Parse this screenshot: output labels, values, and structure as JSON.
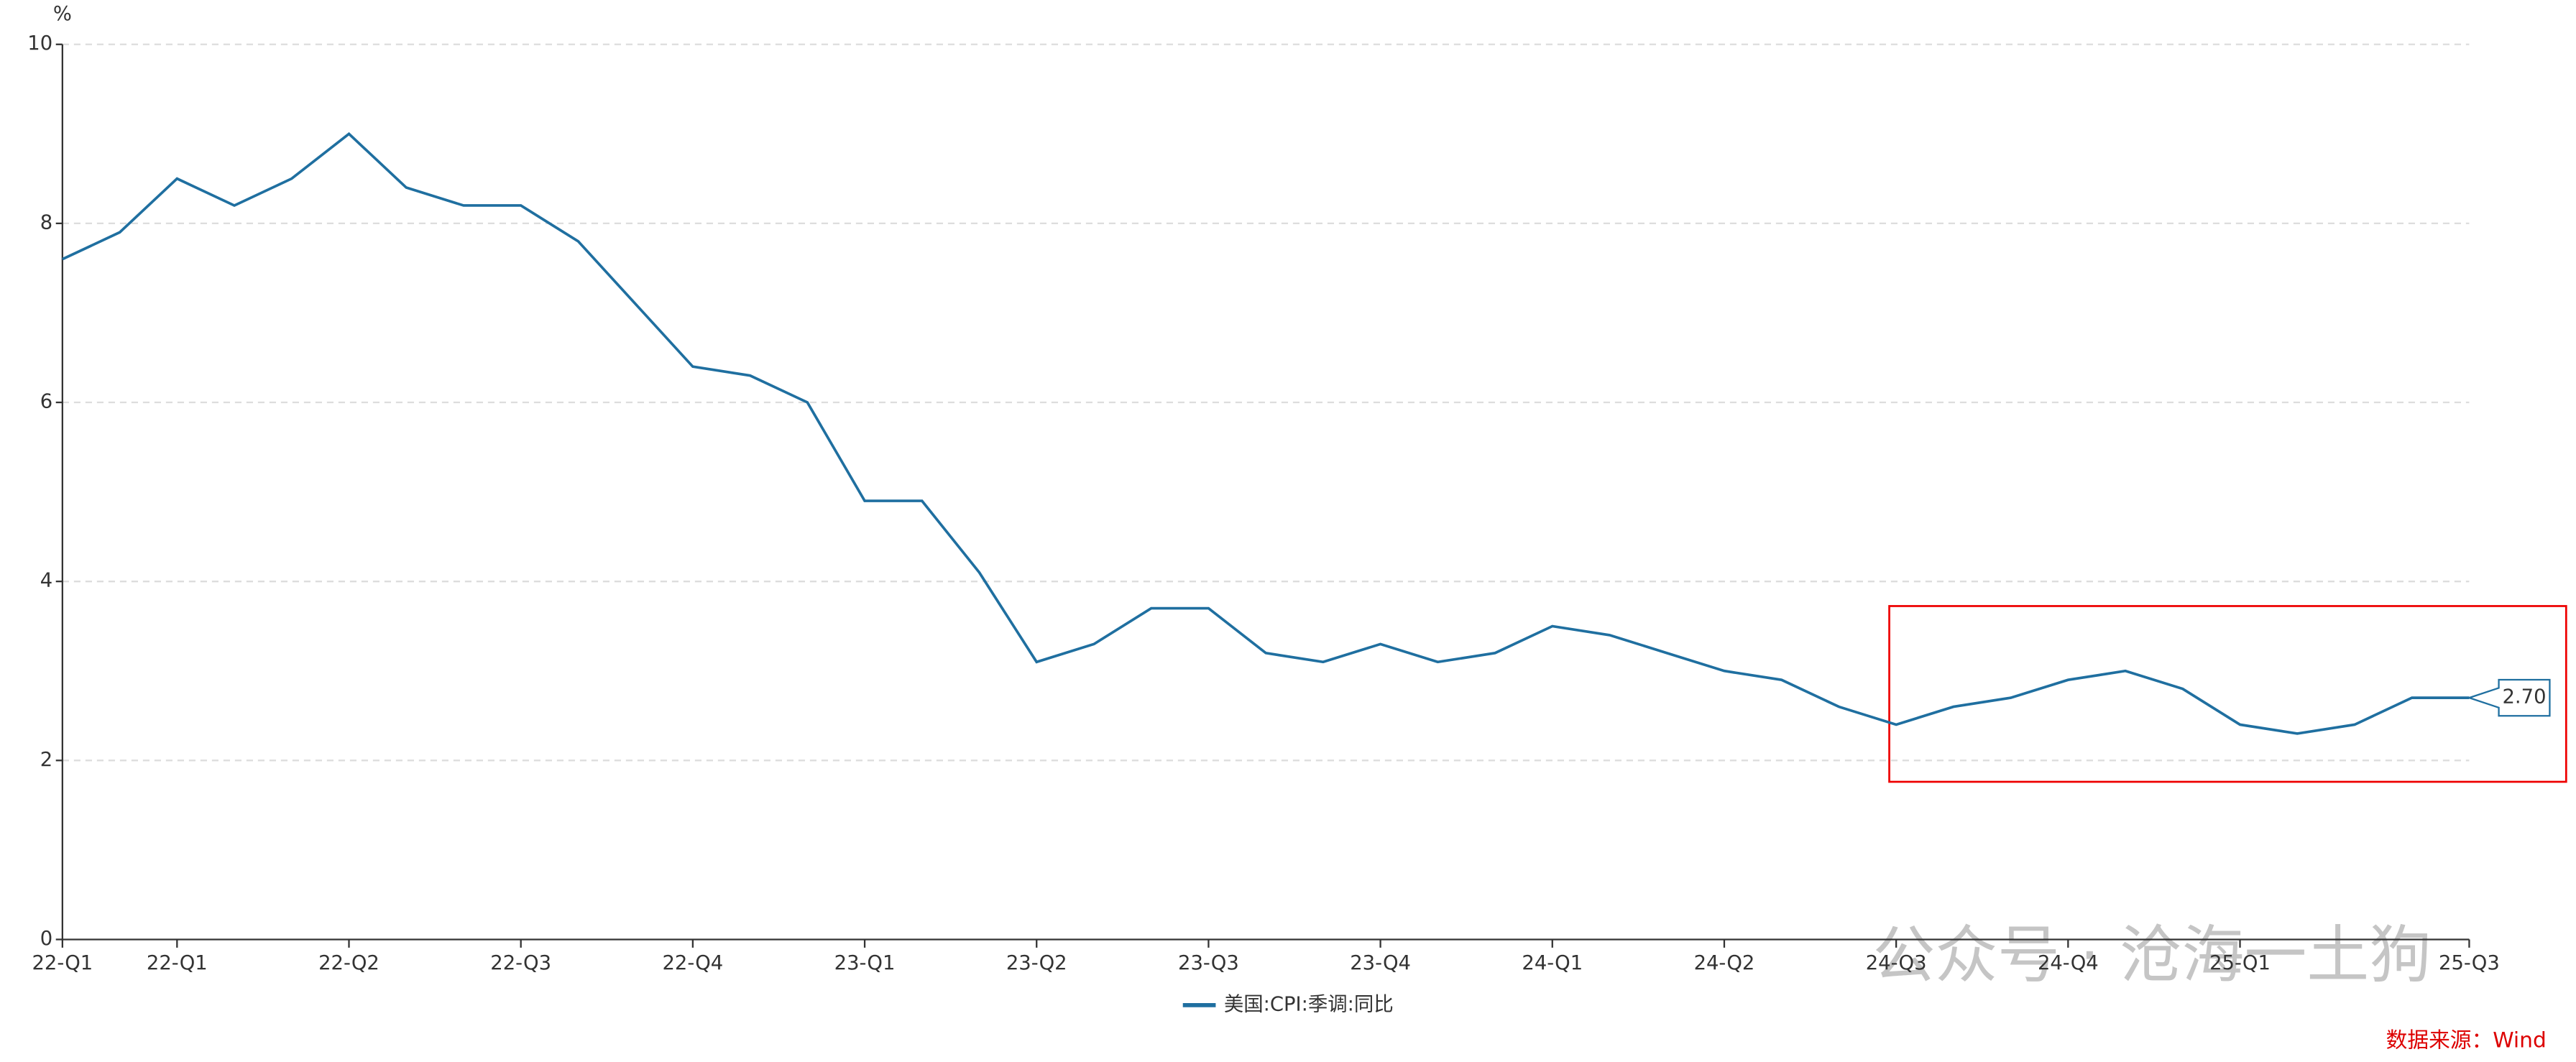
{
  "chart_data": {
    "type": "line",
    "y_label": "%",
    "categories": [
      "22-Q1",
      null,
      "22-Q1",
      null,
      null,
      "22-Q2",
      null,
      null,
      "22-Q3",
      null,
      null,
      "22-Q4",
      null,
      null,
      "23-Q1",
      null,
      null,
      "23-Q2",
      null,
      null,
      "23-Q3",
      null,
      null,
      "23-Q4",
      null,
      null,
      "24-Q1",
      null,
      null,
      "24-Q2",
      null,
      null,
      "24-Q3",
      null,
      null,
      "24-Q4",
      null,
      null,
      "25-Q1",
      null,
      null,
      null,
      "25-Q3"
    ],
    "series": [
      {
        "name": "美国:CPI:季调:同比",
        "color": "#1f6fa0",
        "values": [
          7.6,
          7.9,
          8.5,
          8.2,
          8.5,
          9.0,
          8.4,
          8.2,
          8.2,
          7.8,
          7.1,
          6.4,
          6.3,
          6.0,
          4.9,
          4.9,
          4.1,
          3.1,
          3.3,
          3.7,
          3.7,
          3.2,
          3.1,
          3.3,
          3.1,
          3.2,
          3.5,
          3.4,
          3.2,
          3.0,
          2.9,
          2.6,
          2.4,
          2.6,
          2.7,
          2.9,
          3.0,
          2.8,
          2.4,
          2.3,
          2.4,
          2.7,
          2.7
        ],
        "value_labels": [
          null,
          null,
          null,
          null,
          null,
          null,
          null,
          null,
          null,
          null,
          null,
          null,
          null,
          null,
          null,
          null,
          null,
          null,
          null,
          null,
          null,
          null,
          null,
          null,
          null,
          null,
          null,
          null,
          null,
          null,
          null,
          null,
          null,
          null,
          null,
          null,
          null,
          null,
          null,
          null,
          null,
          null,
          "2.70"
        ]
      }
    ],
    "ylim": [
      0,
      10
    ],
    "yticks": [
      0,
      2,
      4,
      6,
      8,
      10
    ],
    "grid": true,
    "legend": "bottom",
    "source": "数据来源：Wind",
    "watermark": "公众号 · 沧海一土狗"
  }
}
